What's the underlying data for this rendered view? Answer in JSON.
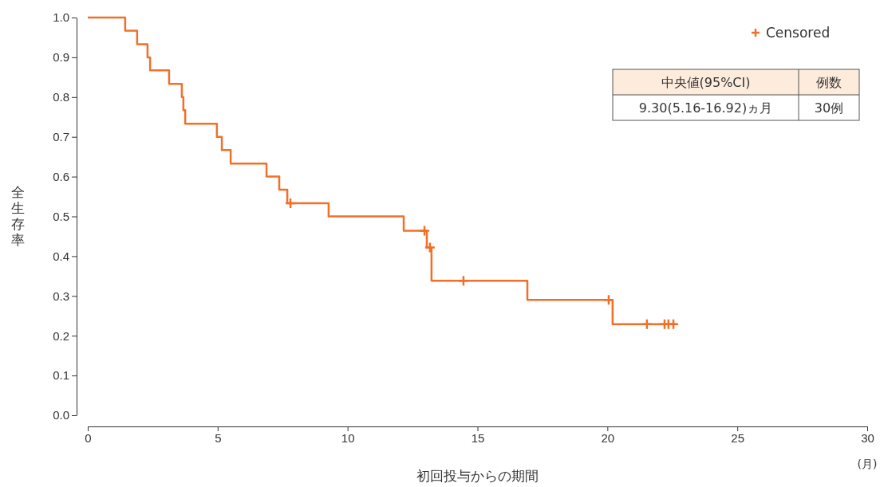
{
  "chart_data": {
    "type": "step",
    "xlabel": "初回投与からの期間",
    "ylabel": "全生存率",
    "xlim": [
      0,
      30
    ],
    "xticks": [
      0,
      5,
      10,
      15,
      20,
      25,
      30
    ],
    "ylim": [
      0,
      1
    ],
    "yticks": [
      {
        "value": 0,
        "label": "0.0"
      },
      0.1,
      0.2,
      0.3,
      0.4,
      0.5,
      0.6,
      0.7,
      0.8,
      0.9,
      {
        "value": 1,
        "label": "1.0"
      }
    ],
    "legend": "top right",
    "grid": false,
    "series": [
      {
        "color": "#f07028",
        "x": [
          0,
          1.44,
          1.9,
          2.3,
          2.4,
          3.13,
          3.62,
          3.68,
          3.75,
          4.97,
          5.16,
          5.5,
          6.88,
          7.37,
          7.68,
          9.27,
          12.16,
          13.05,
          13.23,
          16.92,
          20.2,
          22.66
        ],
        "values": [
          1,
          0.967,
          0.933,
          0.9,
          0.867,
          0.833,
          0.8,
          0.767,
          0.733,
          0.7,
          0.667,
          0.633,
          0.6,
          0.567,
          0.533,
          0.5,
          0.464,
          0.422,
          0.338,
          0.29,
          0.229,
          0.229
        ]
      },
      {
        "type": "scatter",
        "name": "Censored",
        "color": "#f07028",
        "marker": "cross",
        "x": [
          7.8,
          12.96,
          13.17,
          14.46,
          20.05,
          21.52,
          22.2,
          22.35,
          22.54
        ],
        "values": [
          0.533,
          0.464,
          0.422,
          0.338,
          0.29,
          0.229,
          0.229,
          0.229,
          0.229
        ]
      }
    ],
    "annotations": [
      "中央値(95%CI)",
      "例数",
      "9.30(5.16-16.92)ヵ月",
      "30例",
      "(月)"
    ]
  }
}
